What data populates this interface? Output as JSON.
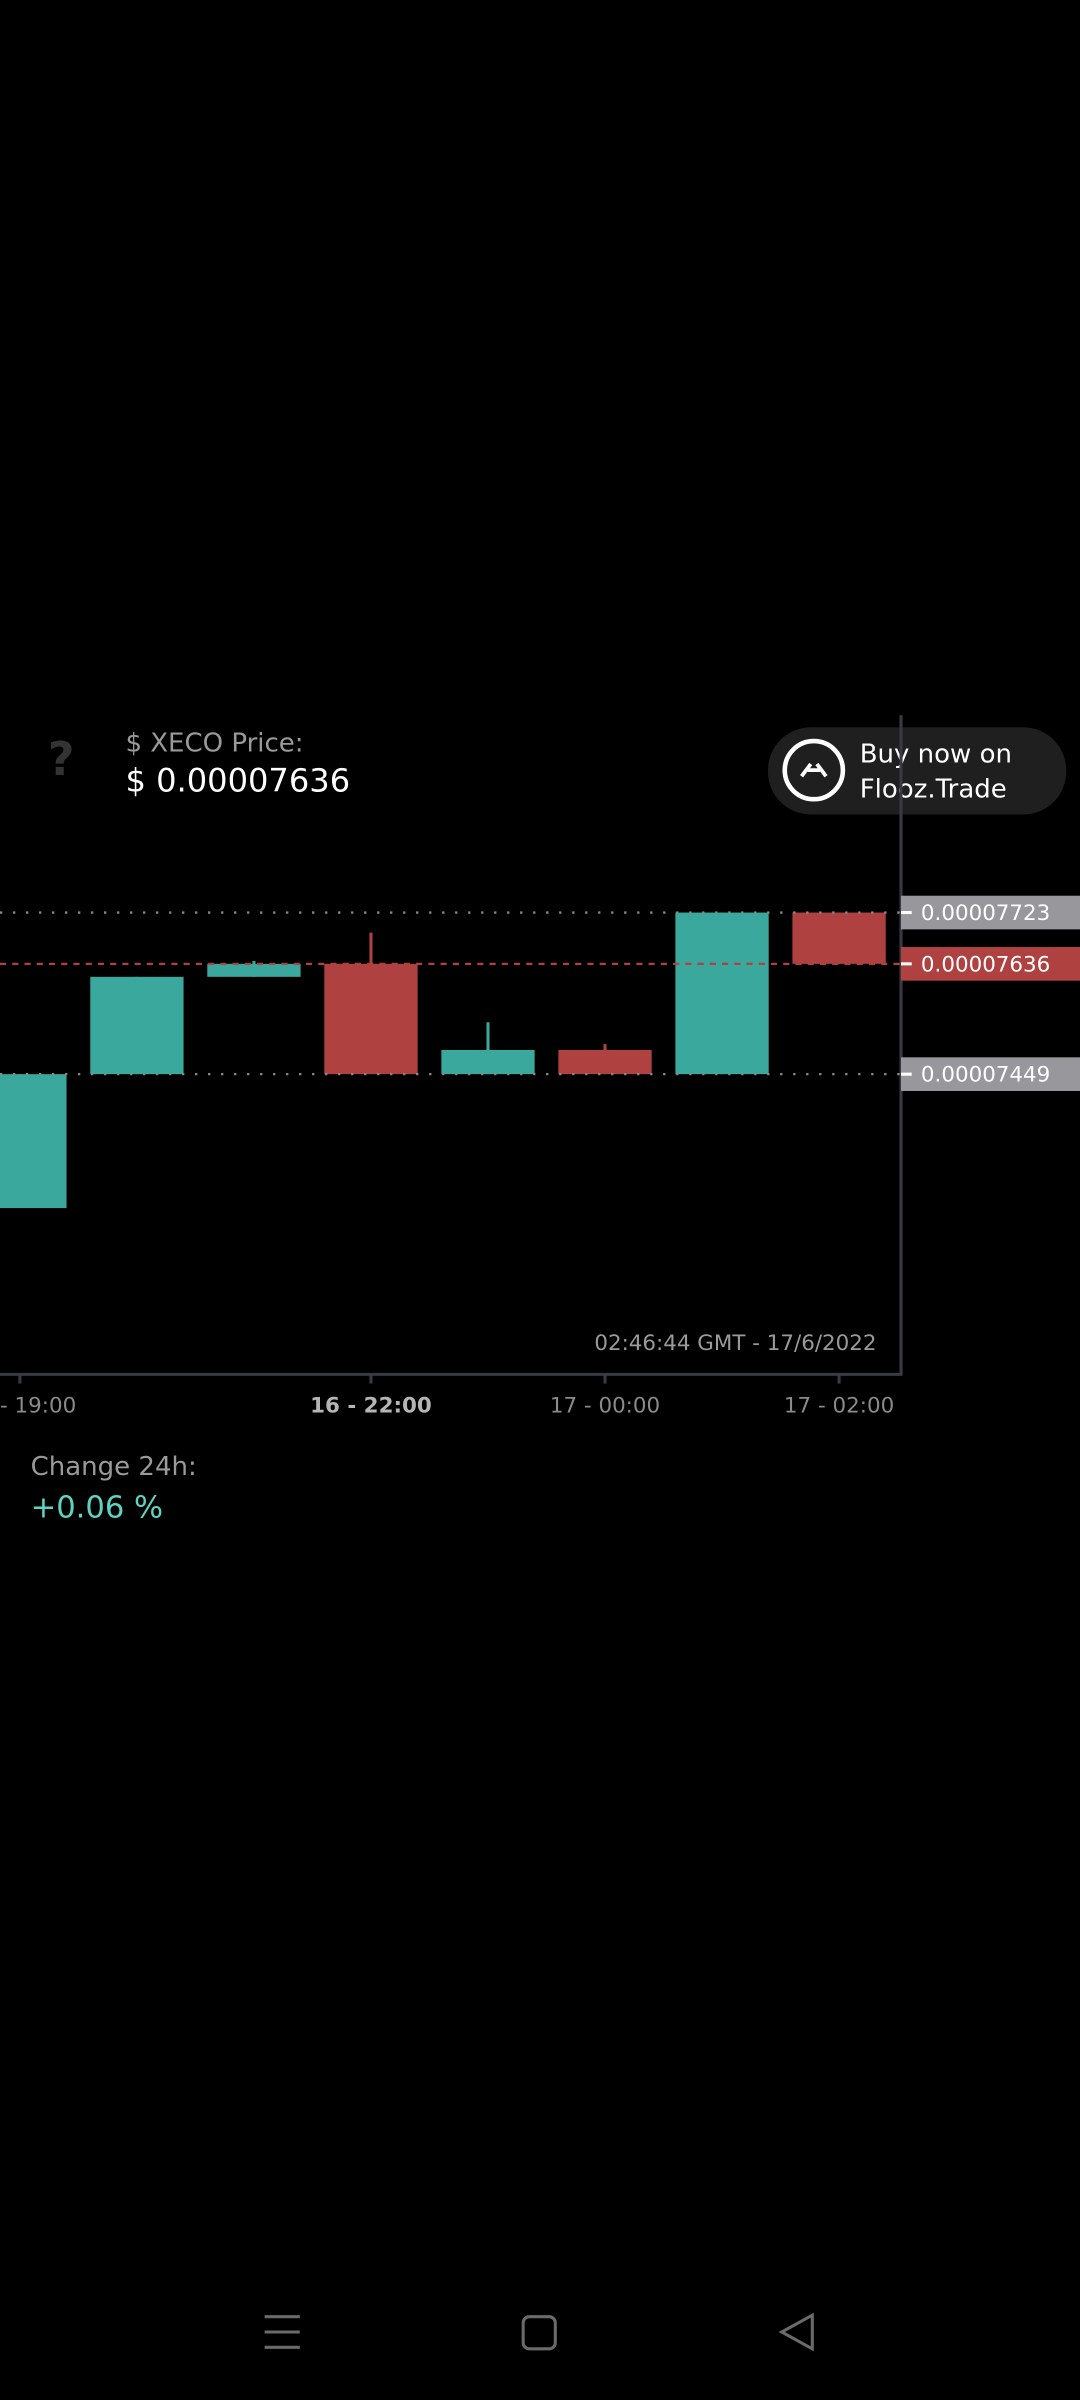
{
  "header": {
    "help_icon": "?",
    "label": "$ XECO Price:",
    "price": "$ 0.00007636"
  },
  "buy_button": {
    "line1": "Buy now on",
    "line2": "Flooz.Trade"
  },
  "chart_data": {
    "type": "candlestick",
    "categories": [
      "- 19:00",
      null,
      null,
      "16 - 22:00",
      null,
      "17 - 00:00",
      null,
      "17 - 02:00"
    ],
    "open": [
      7.222e-05,
      7.449e-05,
      7.614e-05,
      7.636e-05,
      7.449e-05,
      7.49e-05,
      7.449e-05,
      7.723e-05
    ],
    "high": [
      7.449e-05,
      7.614e-05,
      7.641e-05,
      7.689e-05,
      7.537e-05,
      7.5e-05,
      7.723e-05,
      7.723e-05
    ],
    "low": [
      7.222e-05,
      7.449e-05,
      7.614e-05,
      7.449e-05,
      7.449e-05,
      7.449e-05,
      7.449e-05,
      7.636e-05
    ],
    "close": [
      7.449e-05,
      7.614e-05,
      7.636e-05,
      7.449e-05,
      7.49e-05,
      7.449e-05,
      7.723e-05,
      7.636e-05
    ],
    "up_color": "#3aa89c",
    "down_color": "#b04141",
    "ylim": [
      6.94e-05,
      8.05e-05
    ],
    "yticks": [
      7.449e-05,
      7.723e-05
    ],
    "last_price": 7.636e-05,
    "timestamp": "02:46:44 GMT - 17/6/2022"
  },
  "change": {
    "label": "Change 24h:",
    "value": "+0.06 %"
  }
}
